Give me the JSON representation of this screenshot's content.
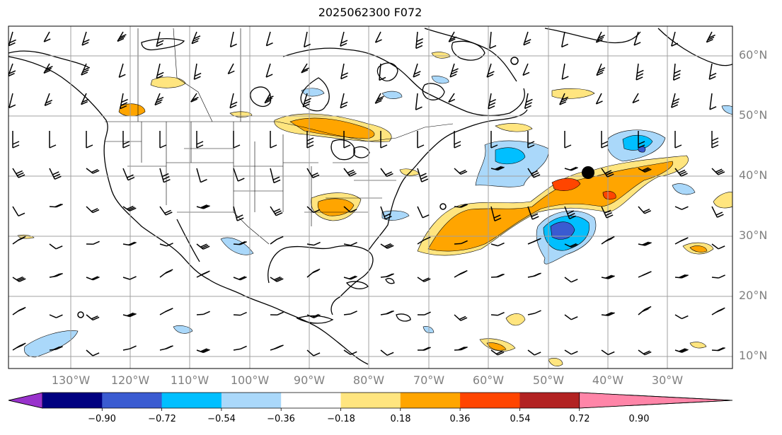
{
  "title": "2025062300 F072",
  "latitude_labels": [
    "60°N",
    "50°N",
    "40°N",
    "30°N",
    "20°N",
    "10°N"
  ],
  "longitude_labels": [
    "130°W",
    "120°W",
    "110°W",
    "100°W",
    "90°W",
    "80°W",
    "70°W",
    "60°W",
    "50°W",
    "40°W",
    "30°W"
  ],
  "colorbar": {
    "colors": [
      "#9932cc",
      "#000080",
      "#3a5bd1",
      "#00bfff",
      "#aad8fa",
      "#ffffff",
      "#ffe57f",
      "#ffa500",
      "#ff4500",
      "#b22222",
      "#ff85a8"
    ],
    "labels": [
      "−0.90",
      "−0.72",
      "−0.54",
      "−0.36",
      "−0.18",
      "0.18",
      "0.36",
      "0.54",
      "0.72",
      "0.90"
    ]
  },
  "map_colors": {
    "coastline": "#000000",
    "grid": "#a0a0a0",
    "wind_barb": "#000000"
  }
}
